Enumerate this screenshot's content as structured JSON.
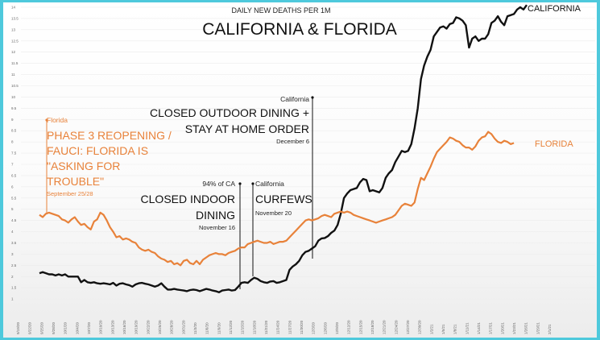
{
  "chart_data": {
    "type": "line",
    "title": "DAILY NEW DEATHS PER 1M",
    "subtitle": "CALIFORNIA & FLORIDA",
    "ylim": [
      0,
      14
    ],
    "y_ticks": [
      "1",
      "1.5",
      "2",
      "2.5",
      "3",
      "3.5",
      "4",
      "4.5",
      "5",
      "5.5",
      "6",
      "6.5",
      "7",
      "7.5",
      "8",
      "8.5",
      "9",
      "9.5",
      "10",
      "10.5",
      "11",
      "11.5",
      "12",
      "12.5",
      "13",
      "13.5",
      "14"
    ],
    "x_ticks": [
      "9/19/20",
      "9/22/20",
      "9/25/20",
      "9/28/20",
      "10/1/20",
      "10/4/20",
      "10/7/20",
      "10/10/20",
      "10/13/20",
      "10/16/20",
      "10/19/20",
      "10/22/20",
      "10/25/20",
      "10/28/20",
      "10/31/20",
      "11/3/20",
      "11/6/20",
      "11/9/20",
      "11/12/20",
      "11/15/20",
      "11/18/20",
      "11/21/20",
      "11/24/20",
      "11/27/20",
      "11/30/20",
      "12/3/20",
      "12/6/20",
      "12/9/20",
      "12/12/20",
      "12/15/20",
      "12/18/20",
      "12/21/20",
      "12/24/20",
      "12/27/20",
      "12/30/20",
      "1/2/21",
      "1/5/21",
      "1/8/21",
      "1/11/21",
      "1/14/21",
      "1/17/21",
      "1/20/21",
      "1/23/21",
      "1/26/21",
      "1/29/21",
      "2/1/21"
    ],
    "grid": true,
    "series": [
      {
        "name": "CALIFORNIA",
        "color": "#111111",
        "values": [
          2.15,
          2.2,
          2.15,
          2.1,
          2.1,
          2.05,
          2.1,
          2.05,
          2.1,
          2.0,
          2.0,
          2.0,
          2.0,
          1.75,
          1.85,
          1.75,
          1.72,
          1.75,
          1.7,
          1.68,
          1.7,
          1.68,
          1.65,
          1.72,
          1.6,
          1.68,
          1.7,
          1.65,
          1.62,
          1.55,
          1.65,
          1.7,
          1.72,
          1.68,
          1.65,
          1.6,
          1.55,
          1.6,
          1.7,
          1.55,
          1.42,
          1.42,
          1.45,
          1.42,
          1.4,
          1.38,
          1.35,
          1.4,
          1.42,
          1.4,
          1.35,
          1.4,
          1.45,
          1.42,
          1.38,
          1.35,
          1.3,
          1.38,
          1.4,
          1.42,
          1.38,
          1.4,
          1.55,
          1.72,
          1.75,
          1.72,
          1.85,
          1.95,
          1.9,
          1.8,
          1.75,
          1.72,
          1.78,
          1.8,
          1.72,
          1.75,
          1.8,
          1.85,
          2.3,
          2.45,
          2.55,
          2.7,
          2.95,
          3.1,
          3.15,
          3.25,
          3.35,
          3.6,
          3.7,
          3.72,
          3.8,
          3.95,
          4.05,
          4.3,
          4.8,
          5.5,
          5.7,
          5.85,
          5.9,
          5.95,
          6.2,
          6.35,
          6.3,
          5.8,
          5.85,
          5.8,
          5.75,
          5.95,
          6.4,
          6.6,
          6.75,
          7.1,
          7.35,
          7.6,
          7.55,
          7.6,
          7.9,
          8.6,
          9.5,
          10.8,
          11.4,
          11.8,
          12.1,
          12.7,
          12.9,
          13.1,
          13.15,
          13.05,
          13.25,
          13.3,
          13.55,
          13.5,
          13.4,
          13.2,
          12.2,
          12.6,
          12.7,
          12.5,
          12.6,
          12.6,
          12.8,
          13.3,
          13.4,
          13.6,
          13.35,
          13.2,
          13.6,
          13.65,
          13.7,
          13.9,
          14.0,
          13.9,
          14.1
        ]
      },
      {
        "name": "FLORIDA",
        "color": "#e8823a",
        "values": [
          4.75,
          4.65,
          4.8,
          4.85,
          4.8,
          4.75,
          4.7,
          4.55,
          4.5,
          4.4,
          4.55,
          4.65,
          4.45,
          4.3,
          4.35,
          4.2,
          4.1,
          4.45,
          4.55,
          4.85,
          4.75,
          4.5,
          4.2,
          4.0,
          3.75,
          3.8,
          3.65,
          3.7,
          3.65,
          3.55,
          3.5,
          3.3,
          3.2,
          3.15,
          3.2,
          3.1,
          3.05,
          2.9,
          2.8,
          2.75,
          2.65,
          2.7,
          2.55,
          2.6,
          2.5,
          2.7,
          2.75,
          2.6,
          2.55,
          2.7,
          2.55,
          2.75,
          2.85,
          2.95,
          3.0,
          3.05,
          3.0,
          3.0,
          2.95,
          3.05,
          3.1,
          3.15,
          3.25,
          3.3,
          3.3,
          3.45,
          3.5,
          3.55,
          3.6,
          3.55,
          3.5,
          3.5,
          3.55,
          3.45,
          3.5,
          3.55,
          3.55,
          3.6,
          3.75,
          3.9,
          4.05,
          4.2,
          4.35,
          4.5,
          4.55,
          4.5,
          4.55,
          4.6,
          4.7,
          4.75,
          4.7,
          4.65,
          4.8,
          4.85,
          4.9,
          4.85,
          4.9,
          4.85,
          4.75,
          4.7,
          4.65,
          4.6,
          4.55,
          4.5,
          4.45,
          4.4,
          4.45,
          4.5,
          4.55,
          4.6,
          4.65,
          4.75,
          4.95,
          5.15,
          5.25,
          5.2,
          5.15,
          5.3,
          5.9,
          6.4,
          6.3,
          6.6,
          6.9,
          7.25,
          7.55,
          7.7,
          7.85,
          8.0,
          8.2,
          8.15,
          8.05,
          8.0,
          7.85,
          7.75,
          7.75,
          7.65,
          7.8,
          8.05,
          8.2,
          8.25,
          8.45,
          8.35,
          8.15,
          8.0,
          7.95,
          8.05,
          8.0,
          7.9,
          7.95
        ]
      }
    ]
  },
  "annotations": {
    "california_outdoor": {
      "small": "California",
      "line1": "CLOSED OUTDOOR DINING +",
      "line2": "STAY AT HOME ORDER",
      "date": "December 6"
    },
    "california_indoor": {
      "small": "94% of CA",
      "line1": "CLOSED INDOOR",
      "line2": "DINING",
      "date": "November 16"
    },
    "california_curfew": {
      "small": "California",
      "line1": "CURFEWS",
      "date": "November 20"
    },
    "florida_phase3": {
      "small": "Florida",
      "line1": "PHASE 3 REOPENING /",
      "line2": "FAUCI: FLORIDA IS",
      "line3": "\"ASKING FOR",
      "line4": "TROUBLE\"",
      "date": "September 25/28"
    }
  }
}
